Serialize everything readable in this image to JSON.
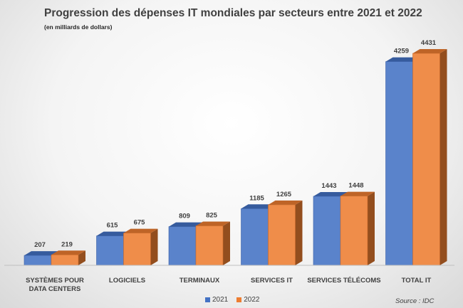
{
  "chart_data": {
    "type": "bar",
    "title": "Progression des dépenses IT mondiales par secteurs entre 2021 et 2022",
    "subtitle": "(en milliards de dollars)",
    "categories": [
      [
        "SYSTÈMES POUR",
        "DATA CENTERS"
      ],
      [
        "LOGICIELS"
      ],
      [
        "TERMINAUX"
      ],
      [
        "SERVICES IT"
      ],
      [
        "SERVICES TÉLÉCOMS"
      ],
      [
        "TOTAL IT"
      ]
    ],
    "series": [
      {
        "name": "2021",
        "values": [
          207,
          615,
          809,
          1185,
          1443,
          4259
        ],
        "color": "#4472C4"
      },
      {
        "name": "2022",
        "values": [
          219,
          675,
          825,
          1265,
          1448,
          4431
        ],
        "color": "#ED7D31"
      }
    ],
    "ylim": [
      0,
      4431
    ],
    "legend_position": "bottom",
    "grid": false,
    "source": "Source : IDC",
    "three_d": true
  }
}
